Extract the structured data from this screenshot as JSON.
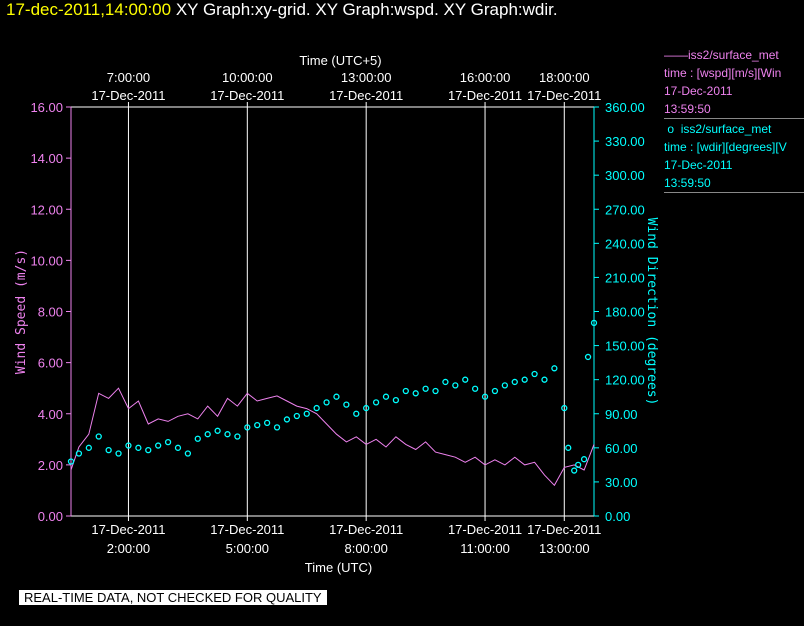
{
  "header": {
    "timestamp": "17-dec-2011,14:00:00",
    "widgets": "XY Graph:xy-grid.  XY Graph:wspd.  XY Graph:wdir."
  },
  "legend": {
    "wspd": {
      "name": "iss2/surface_met",
      "desc": "time : [wspd][m/s][Win",
      "date": "17-Dec-2011",
      "time": "13:59:50",
      "color": "#ee82ee"
    },
    "wdir": {
      "name": "iss2/surface_met",
      "desc": "time : [wdir][degrees][V",
      "date": "17-Dec-2011",
      "time": "13:59:50",
      "color": "#00ffff"
    }
  },
  "notice": "REAL-TIME DATA, NOT CHECKED FOR QUALITY",
  "chart_data": {
    "type": "line",
    "x_unit": "hours UTC on 17-Dec-2011",
    "xlim": [
      0.55,
      13.75
    ],
    "top_axis": {
      "label": "Time (UTC+5)",
      "ticks": [
        {
          "x": 2,
          "time": "7:00:00",
          "date": "17-Dec-2011"
        },
        {
          "x": 5,
          "time": "10:00:00",
          "date": "17-Dec-2011"
        },
        {
          "x": 8,
          "time": "13:00:00",
          "date": "17-Dec-2011"
        },
        {
          "x": 11,
          "time": "16:00:00",
          "date": "17-Dec-2011"
        },
        {
          "x": 13,
          "time": "18:00:00",
          "date": "17-Dec-2011"
        }
      ]
    },
    "bottom_axis": {
      "label": "Time (UTC)",
      "ticks": [
        {
          "x": 2,
          "time": "2:00:00",
          "date": "17-Dec-2011"
        },
        {
          "x": 5,
          "time": "5:00:00",
          "date": "17-Dec-2011"
        },
        {
          "x": 8,
          "time": "8:00:00",
          "date": "17-Dec-2011"
        },
        {
          "x": 11,
          "time": "11:00:00",
          "date": "17-Dec-2011"
        },
        {
          "x": 13,
          "time": "13:00:00",
          "date": "17-Dec-2011"
        }
      ]
    },
    "left_axis": {
      "label": "Wind Speed (m/s)",
      "ylim": [
        0,
        16
      ],
      "ticks": [
        "0.00",
        "2.00",
        "4.00",
        "6.00",
        "8.00",
        "10.00",
        "12.00",
        "14.00",
        "16.00"
      ]
    },
    "right_axis": {
      "label": "Wind Direction (degrees)",
      "ylim": [
        0,
        360
      ],
      "ticks": [
        "0.00",
        "30.00",
        "60.00",
        "90.00",
        "120.00",
        "150.00",
        "180.00",
        "210.00",
        "240.00",
        "270.00",
        "300.00",
        "330.00",
        "360.00"
      ]
    },
    "grid": "vertical lines at major x ticks",
    "series": [
      {
        "name": "iss2/surface_met wspd",
        "style": "line",
        "color": "#ee82ee",
        "x": [
          0.55,
          0.75,
          1.0,
          1.25,
          1.5,
          1.75,
          2.0,
          2.25,
          2.5,
          2.75,
          3.0,
          3.25,
          3.5,
          3.75,
          4.0,
          4.25,
          4.5,
          4.75,
          5.0,
          5.25,
          5.5,
          5.75,
          6.0,
          6.25,
          6.5,
          6.75,
          7.0,
          7.25,
          7.5,
          7.75,
          8.0,
          8.25,
          8.5,
          8.75,
          9.0,
          9.25,
          9.5,
          9.75,
          10.0,
          10.25,
          10.5,
          10.75,
          11.0,
          11.25,
          11.5,
          11.75,
          12.0,
          12.25,
          12.5,
          12.75,
          13.0,
          13.25,
          13.5,
          13.75
        ],
        "values": [
          1.8,
          2.7,
          3.2,
          4.8,
          4.6,
          5.0,
          4.2,
          4.5,
          3.6,
          3.8,
          3.7,
          3.9,
          4.0,
          3.8,
          4.3,
          3.9,
          4.6,
          4.3,
          4.8,
          4.5,
          4.6,
          4.7,
          4.5,
          4.3,
          4.2,
          4.0,
          3.6,
          3.2,
          2.9,
          3.1,
          2.8,
          3.0,
          2.7,
          3.1,
          2.8,
          2.6,
          2.9,
          2.5,
          2.4,
          2.3,
          2.1,
          2.3,
          2.0,
          2.2,
          2.0,
          2.3,
          2.0,
          2.1,
          1.6,
          1.2,
          1.9,
          2.0,
          1.8,
          2.8
        ]
      },
      {
        "name": "iss2/surface_met wdir",
        "style": "circles",
        "color": "#00ffff",
        "x": [
          0.55,
          0.75,
          1.0,
          1.25,
          1.5,
          1.75,
          2.0,
          2.25,
          2.5,
          2.75,
          3.0,
          3.25,
          3.5,
          3.75,
          4.0,
          4.25,
          4.5,
          4.75,
          5.0,
          5.25,
          5.5,
          5.75,
          6.0,
          6.25,
          6.5,
          6.75,
          7.0,
          7.25,
          7.5,
          7.75,
          8.0,
          8.25,
          8.5,
          8.75,
          9.0,
          9.25,
          9.5,
          9.75,
          10.0,
          10.25,
          10.5,
          10.75,
          11.0,
          11.25,
          11.5,
          11.75,
          12.0,
          12.25,
          12.5,
          12.75,
          13.0,
          13.1,
          13.25,
          13.35,
          13.5,
          13.6,
          13.75
        ],
        "values": [
          48,
          55,
          60,
          70,
          58,
          55,
          62,
          60,
          58,
          62,
          65,
          60,
          55,
          68,
          72,
          75,
          72,
          70,
          78,
          80,
          82,
          78,
          85,
          88,
          90,
          95,
          100,
          105,
          98,
          90,
          95,
          100,
          105,
          102,
          110,
          108,
          112,
          110,
          118,
          115,
          120,
          112,
          105,
          110,
          115,
          118,
          120,
          125,
          120,
          130,
          95,
          60,
          40,
          45,
          50,
          140,
          170
        ]
      }
    ]
  }
}
